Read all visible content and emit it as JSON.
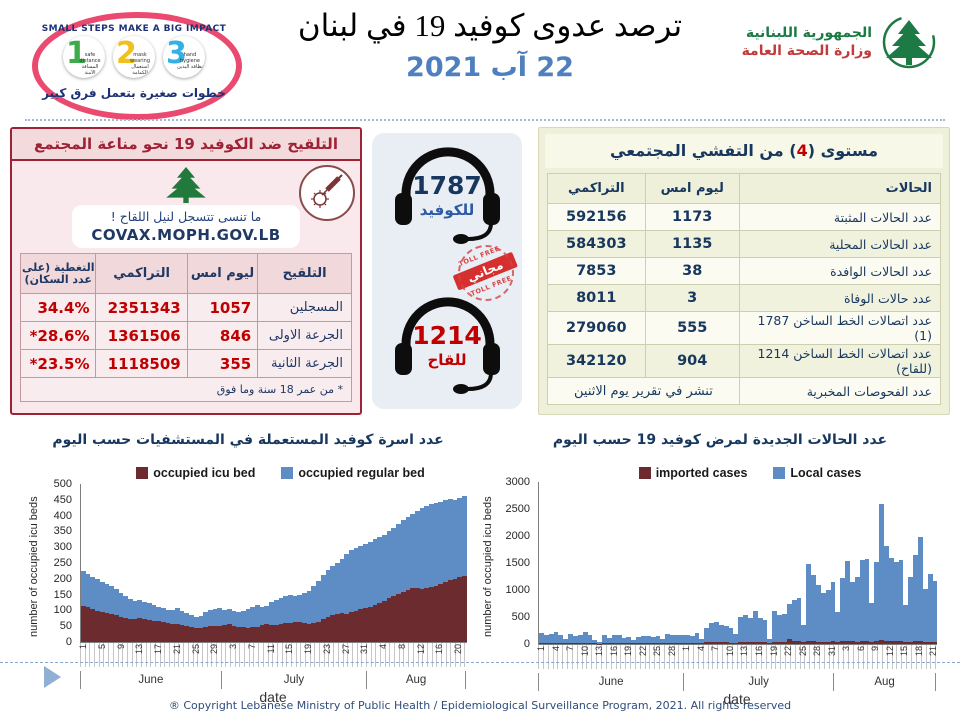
{
  "header": {
    "title": "ترصد عدوى كوفيد 19 في لبنان",
    "date": "22 آب 2021",
    "campaign_logo": {
      "arc_text": "SMALL STEPS MAKE A BIG IMPACT",
      "bottom_text": "خطوات صغيرة بتعمل فرق كبير",
      "steps": [
        {
          "num": "1",
          "label_en": "safe distance",
          "label_ar": "المسافة الآمنة"
        },
        {
          "num": "2",
          "label_en": "mask wearing",
          "label_ar": "استعمال الكمامة"
        },
        {
          "num": "3",
          "label_en": "hand hygiene",
          "label_ar": "نظافة اليدين"
        }
      ]
    },
    "moph_logo": {
      "line1": "الجمهورية اللبنانية",
      "line2": "وزارة الصحة العامة"
    }
  },
  "vaccination_panel": {
    "title": "التلقيح ضد الكوفيد 19  نحو مناعة المجتمع",
    "reminder_line1": "ما تنسى تتسجل لنيل اللقاح !",
    "reminder_line2": "COVAX.MOPH.GOV.LB",
    "table": {
      "headers": [
        "التلقيح",
        "ليوم امس",
        "التراكمي",
        "التغطية (على عدد السكان)"
      ],
      "rows": [
        [
          "المسجلين",
          "1057",
          "2351343",
          "34.4%"
        ],
        [
          "الجرعة الاولى",
          "846",
          "1361506",
          "*28.6%"
        ],
        [
          "الجرعة الثانية",
          "355",
          "1118509",
          "*23.5%"
        ]
      ],
      "footnote": "* من عمر 18 سنة وما فوق"
    }
  },
  "hotlines": {
    "covid": {
      "number": "1787",
      "label": "للكوفيد"
    },
    "vaccine": {
      "number": "1214",
      "label": "للقاح"
    },
    "stamp": {
      "arc": "TOLL FREE",
      "center": "مجاني"
    }
  },
  "outbreak_panel": {
    "title_before": "مستوى (",
    "title_level": "4",
    "title_after": ") من التفشي المجتمعي",
    "table": {
      "headers": [
        "الحالات",
        "ليوم امس",
        "التراكمي"
      ],
      "rows": [
        [
          "عدد الحالات المثبتة",
          "1173",
          "592156"
        ],
        [
          "عدد الحالات المحلية",
          "1135",
          "584303"
        ],
        [
          "عدد الحالات الوافدة",
          "38",
          "7853"
        ],
        [
          "عدد حالات الوفاة",
          "3",
          "8011"
        ],
        [
          "عدد اتصالات الخط الساخن 1787  (1)",
          "555",
          "279060"
        ],
        [
          "عدد اتصالات الخط الساخن 1214 (للقاح)",
          "904",
          "342120"
        ]
      ],
      "footer_label": "عدد الفحوصات المخبرية",
      "footer_value": "تنشر في تقرير يوم الاثنين"
    }
  },
  "chart_data": [
    {
      "type": "bar",
      "stacked": true,
      "title": "عدد اسرة كوفيد المستعملة في المستشفيات حسب اليوم",
      "xlabel": "date",
      "ylabel": "number of occupied icu beds",
      "ylim": [
        0,
        500
      ],
      "y_ticks": [
        "0",
        "50",
        "100",
        "150",
        "200",
        "250",
        "300",
        "350",
        "400",
        "450",
        "500"
      ],
      "grid": false,
      "legend_position": "top",
      "months": [
        {
          "name": "June",
          "days": 30
        },
        {
          "name": "July",
          "days": 31
        },
        {
          "name": "Aug",
          "days": 21
        }
      ],
      "x_tick_every": 4,
      "x_tick_labels": [
        "1",
        "5",
        "9",
        "13",
        "17",
        "21",
        "25",
        "29",
        "3",
        "7",
        "11",
        "15",
        "19",
        "23",
        "27",
        "31",
        "4",
        "8",
        "12",
        "16",
        "20"
      ],
      "series": [
        {
          "name": "occupied icu bed",
          "color": "#6b2b2f",
          "values": [
            115,
            112,
            105,
            98,
            95,
            92,
            90,
            85,
            80,
            76,
            72,
            74,
            76,
            73,
            70,
            68,
            66,
            63,
            60,
            58,
            56,
            54,
            50,
            48,
            45,
            44,
            47,
            50,
            51,
            52,
            54,
            56,
            52,
            49,
            46,
            45,
            46,
            48,
            54,
            57,
            55,
            54,
            57,
            59,
            61,
            63,
            62,
            60,
            58,
            59,
            62,
            74,
            80,
            84,
            88,
            91,
            90,
            94,
            99,
            104,
            108,
            110,
            116,
            122,
            130,
            138,
            145,
            152,
            158,
            166,
            172,
            170,
            168,
            170,
            174,
            178,
            184,
            190,
            196,
            200,
            206,
            210
          ]
        },
        {
          "name": "occupied regular bed",
          "color": "#5e8cc4",
          "values": [
            110,
            103,
            102,
            100,
            95,
            91,
            88,
            83,
            75,
            69,
            63,
            57,
            57,
            54,
            52,
            49,
            46,
            44,
            42,
            42,
            51,
            43,
            42,
            38,
            35,
            38,
            48,
            50,
            53,
            56,
            46,
            48,
            46,
            45,
            53,
            61,
            66,
            70,
            56,
            57,
            73,
            79,
            82,
            87,
            89,
            83,
            88,
            94,
            105,
            119,
            130,
            138,
            148,
            156,
            162,
            171,
            188,
            196,
            199,
            201,
            202,
            208,
            209,
            210,
            210,
            212,
            217,
            223,
            227,
            229,
            233,
            245,
            257,
            262,
            264,
            262,
            260,
            258,
            256,
            250,
            250,
            252
          ]
        }
      ]
    },
    {
      "type": "bar",
      "stacked": true,
      "title": "عدد الحالات الجديدة لمرض كوفيد 19 حسب اليوم",
      "xlabel": "date",
      "ylabel": "number of occupied icu beds",
      "ylim": [
        0,
        3000
      ],
      "y_ticks": [
        "0",
        "500",
        "1000",
        "1500",
        "2000",
        "2500",
        "3000"
      ],
      "grid": false,
      "legend_position": "top",
      "months": [
        {
          "name": "June",
          "days": 30
        },
        {
          "name": "July",
          "days": 31
        },
        {
          "name": "Aug",
          "days": 21
        }
      ],
      "x_tick_every": 3,
      "x_tick_labels": [
        "1",
        "4",
        "7",
        "10",
        "13",
        "16",
        "19",
        "22",
        "25",
        "28",
        "1",
        "4",
        "7",
        "10",
        "13",
        "16",
        "19",
        "22",
        "25",
        "28",
        "31",
        "3",
        "6",
        "9",
        "12",
        "15",
        "18",
        "21"
      ],
      "series": [
        {
          "name": "imported cases",
          "color": "#6b2b2f",
          "values": [
            20,
            15,
            20,
            25,
            15,
            10,
            20,
            15,
            15,
            25,
            15,
            10,
            5,
            20,
            15,
            15,
            20,
            10,
            15,
            10,
            15,
            15,
            20,
            15,
            15,
            10,
            20,
            15,
            15,
            20,
            20,
            15,
            25,
            10,
            30,
            35,
            40,
            30,
            30,
            25,
            20,
            35,
            35,
            30,
            35,
            30,
            30,
            10,
            40,
            35,
            45,
            100,
            60,
            50,
            30,
            60,
            50,
            45,
            40,
            40,
            50,
            40,
            55,
            60,
            50,
            45,
            50,
            50,
            35,
            55,
            70,
            60,
            55,
            50,
            50,
            30,
            40,
            50,
            55,
            35,
            45,
            40
          ]
        },
        {
          "name": "Local cases",
          "color": "#5e8cc4",
          "values": [
            190,
            145,
            170,
            200,
            150,
            80,
            160,
            135,
            150,
            200,
            145,
            65,
            40,
            150,
            105,
            150,
            140,
            100,
            120,
            65,
            115,
            130,
            135,
            115,
            135,
            85,
            160,
            155,
            145,
            155,
            140,
            135,
            180,
            85,
            270,
            350,
            365,
            320,
            300,
            275,
            165,
            465,
            500,
            450,
            570,
            460,
            420,
            75,
            580,
            500,
            515,
            650,
            750,
            800,
            320,
            1420,
            1220,
            1055,
            910,
            960,
            1100,
            560,
            1175,
            1470,
            1100,
            1205,
            1500,
            1530,
            725,
            1465,
            2520,
            1760,
            1545,
            1460,
            1500,
            690,
            1210,
            1600,
            1935,
            985,
            1255,
            1130
          ]
        }
      ]
    }
  ],
  "footer": "® Copyright Lebanese Ministry of Public Health / Epidemiological Surveillance Program, 2021. All rights reserved",
  "colors": {
    "date_blue": "#4e7fbe",
    "panel_red": "#9e2235",
    "value_red": "#c00000",
    "navy": "#17375e",
    "icu_maroon": "#6b2b2f",
    "bed_blue": "#5e8cc4",
    "moph_green": "#1d7a44",
    "moph_red": "#c23a3a",
    "stamp_red": "#d62f2f",
    "step_colors": [
      "#3faa49",
      "#f0c11d",
      "#33b1e6"
    ]
  }
}
